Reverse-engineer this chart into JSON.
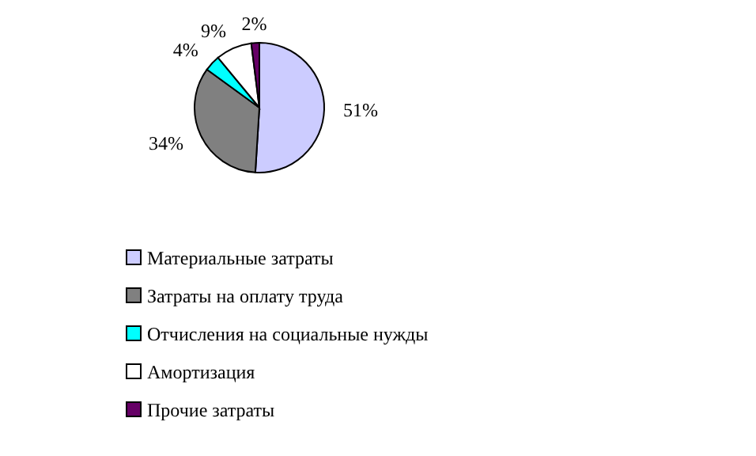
{
  "chart_data": {
    "type": "pie",
    "categories": [
      "Материальные затраты",
      "Затраты на оплату труда",
      "Отчисления на социальные нужды",
      "Амортизация",
      "Прочие затраты"
    ],
    "values": [
      51,
      34,
      4,
      9,
      2
    ],
    "value_labels": [
      "51%",
      "34%",
      "4%",
      "9%",
      "2%"
    ],
    "colors": [
      "#ccccff",
      "#808080",
      "#00ffff",
      "#ffffff",
      "#660066"
    ],
    "legend": "bottom"
  }
}
